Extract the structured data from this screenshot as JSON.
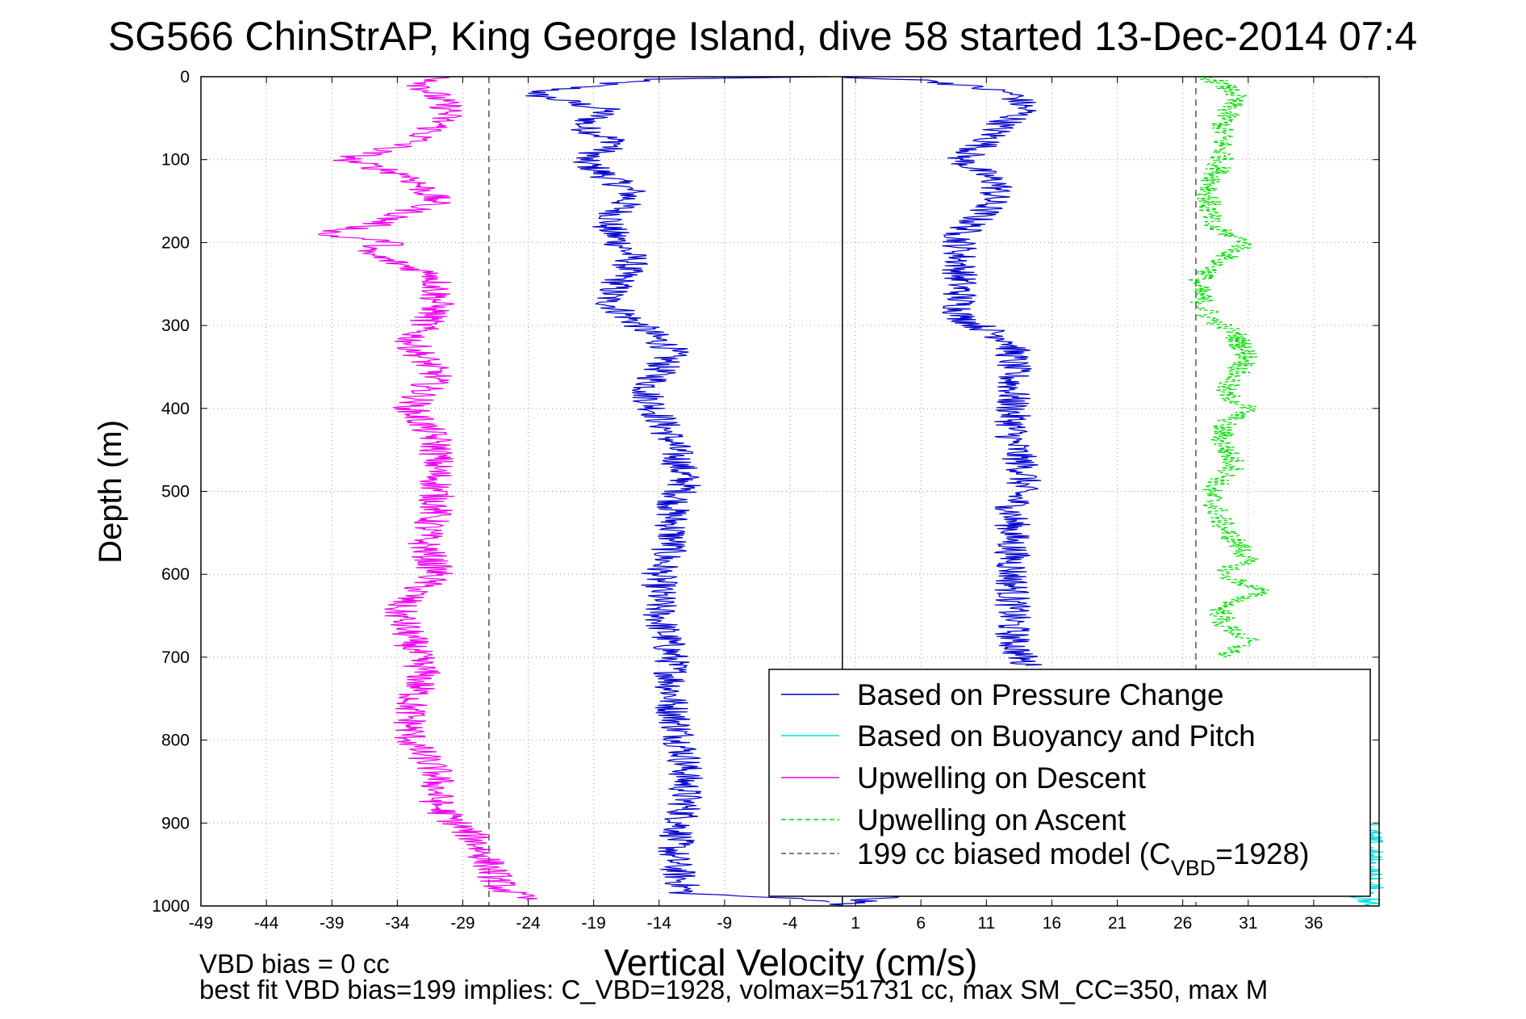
{
  "chart_data": {
    "type": "line",
    "title": "SG566 ChinStrAP, King George Island, dive 58 started 13-Dec-2014 07:4",
    "xlabel": "Vertical Velocity (cm/s)",
    "ylabel": "Depth (m)",
    "xlim": [
      -49,
      41
    ],
    "ylim": [
      0,
      1000
    ],
    "y_reversed": true,
    "grid": "dotted",
    "xticks": [
      -49,
      -44,
      -39,
      -34,
      -29,
      -24,
      -19,
      -14,
      -9,
      -4,
      1,
      6,
      11,
      16,
      21,
      26,
      31,
      36
    ],
    "yticks": [
      0,
      100,
      200,
      300,
      400,
      500,
      600,
      700,
      800,
      900,
      1000
    ],
    "reference_lines": [
      {
        "x": 0,
        "style": "solid",
        "color": "#000000"
      },
      {
        "x": -27,
        "style": "dashed",
        "color": "#555555"
      },
      {
        "x": 27,
        "style": "dashed",
        "color": "#555555"
      }
    ],
    "series": [
      {
        "name": "Based on Pressure Change",
        "color": "#0000cc",
        "style": "solid",
        "segments": [
          {
            "depth": [
              0,
              3,
              20,
              40,
              60,
              80,
              100,
              140,
              180,
              220,
              270,
              330,
              380,
              440,
              490,
              520,
              560,
              600,
              650,
              700,
              760,
              820,
              880,
              940,
              985,
              990,
              995
            ],
            "velocity": [
              -1,
              -15,
              -24,
              -18,
              -20,
              -17,
              -20,
              -16,
              -18,
              -16,
              -18,
              -13,
              -15,
              -13,
              -12,
              -13,
              -13,
              -14,
              -14,
              -13,
              -13,
              -12,
              -12,
              -13,
              -12,
              -5,
              -1
            ]
          },
          {
            "depth": [
              0,
              5,
              20,
              40,
              60,
              80,
              100,
              130,
              160,
              190,
              210,
              250,
              290,
              320,
              360,
              400,
              440,
              480,
              520,
              560,
              600,
              640,
              680,
              710
            ],
            "velocity": [
              0,
              7,
              13,
              14,
              12,
              11,
              9,
              12,
              11,
              9,
              9,
              9,
              9,
              13,
              13,
              13,
              13,
              14,
              13,
              13,
              13,
              13,
              13,
              14
            ]
          },
          {
            "depth": [
              985,
              995,
              1000
            ],
            "velocity": [
              6,
              1,
              0
            ]
          }
        ]
      },
      {
        "name": "Based on Buoyancy and Pitch",
        "color": "#00e0e0",
        "style": "solid",
        "segments": [
          {
            "depth": [
              0,
              2
            ],
            "velocity": [
              40,
              40
            ]
          },
          {
            "depth": [
              900,
              1000
            ],
            "velocity": [
              40,
              40
            ]
          }
        ]
      },
      {
        "name": "Upwelling on Descent",
        "color": "#ee00ee",
        "style": "solid",
        "segments": [
          {
            "depth": [
              0,
              10,
              40,
              60,
              80,
              100,
              120,
              150,
              180,
              190,
              200,
              210,
              240,
              280,
              320,
              360,
              400,
              440,
              490,
              520,
              560,
              600,
              640,
              680,
              720,
              760,
              800,
              840,
              880,
              920,
              950,
              980,
              993
            ],
            "velocity": [
              -30,
              -32,
              -30,
              -31,
              -33,
              -38,
              -33,
              -31,
              -36,
              -40,
              -34,
              -37,
              -31,
              -31,
              -33,
              -31,
              -33,
              -31,
              -31,
              -31,
              -32,
              -31,
              -34,
              -33,
              -32,
              -33,
              -33,
              -31,
              -31,
              -28,
              -27,
              -26,
              -24
            ]
          }
        ]
      },
      {
        "name": "Upwelling on Ascent",
        "color": "#00dd00",
        "style": "dashed",
        "segments": [
          {
            "depth": [
              0,
              20,
              60,
              100,
              140,
              180,
              200,
              220,
              250,
              290,
              310,
              340,
              360,
              380,
              400,
              420,
              440,
              470,
              500,
              540,
              580,
              600,
              620,
              640,
              660,
              680,
              700
            ],
            "velocity": [
              28,
              30,
              29,
              29,
              28,
              28,
              31,
              29,
              27,
              28,
              30,
              31,
              30,
              29,
              31,
              29,
              29,
              30,
              28,
              29,
              31,
              29,
              32,
              29,
              29,
              31,
              29
            ]
          }
        ]
      },
      {
        "name": "199 cc biased model (C",
        "name_sub": "VBD",
        "name_tail": "=1928)",
        "color": "#555555",
        "style": "dashed",
        "segments": []
      }
    ],
    "legend_position": "lower-right",
    "annotations": [
      "VBD bias = 0 cc",
      "best fit VBD bias=199 implies: C_VBD=1928, volmax=51731 cc, max SM_CC=350, max M"
    ]
  }
}
